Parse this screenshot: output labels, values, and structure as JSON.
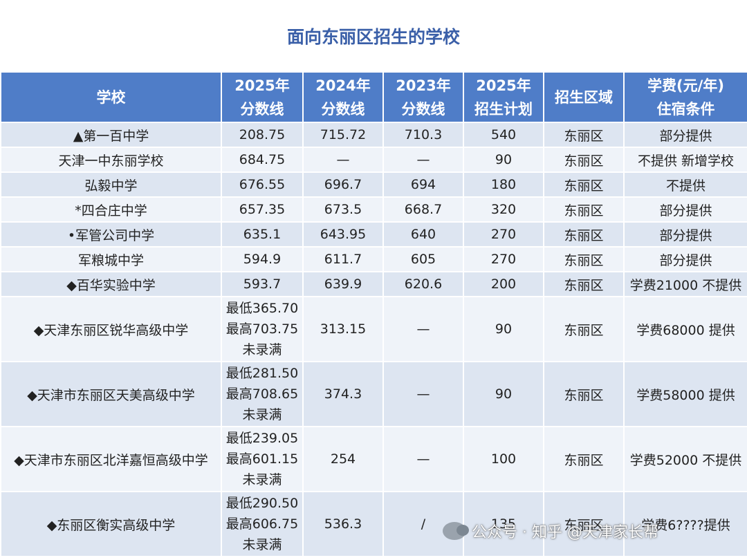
{
  "title": "面向东丽区招生的学校",
  "header": {
    "c0": [
      "学校"
    ],
    "c1": [
      "2025年",
      "分数线"
    ],
    "c2": [
      "2024年",
      "分数线"
    ],
    "c3": [
      "2023年",
      "分数线"
    ],
    "c4": [
      "2025年",
      "招生计划"
    ],
    "c5": [
      "招生区域"
    ],
    "c6": [
      "学费(元/年)",
      "住宿条件"
    ]
  },
  "rows": [
    {
      "school": "▲第一百中学",
      "s2025": [
        "208.75"
      ],
      "s2024": "715.72",
      "s2023": "710.3",
      "plan": "540",
      "area": "东丽区",
      "fee": "部分提供"
    },
    {
      "school": "天津一中东丽学校",
      "s2025": [
        "684.75"
      ],
      "s2024": "—",
      "s2023": "—",
      "plan": "90",
      "area": "东丽区",
      "fee": "不提供 新增学校"
    },
    {
      "school": "弘毅中学",
      "s2025": [
        "676.55"
      ],
      "s2024": "696.7",
      "s2023": "694",
      "plan": "180",
      "area": "东丽区",
      "fee": "不提供"
    },
    {
      "school": "*四合庄中学",
      "s2025": [
        "657.35"
      ],
      "s2024": "673.5",
      "s2023": "668.7",
      "plan": "320",
      "area": "东丽区",
      "fee": "部分提供"
    },
    {
      "school": "•军管公司中学",
      "s2025": [
        "635.1"
      ],
      "s2024": "643.95",
      "s2023": "640",
      "plan": "270",
      "area": "东丽区",
      "fee": "部分提供"
    },
    {
      "school": "军粮城中学",
      "s2025": [
        "594.9"
      ],
      "s2024": "611.7",
      "s2023": "605",
      "plan": "270",
      "area": "东丽区",
      "fee": "部分提供"
    },
    {
      "school": "◆百华实验中学",
      "s2025": [
        "593.7"
      ],
      "s2024": "639.9",
      "s2023": "620.6",
      "plan": "200",
      "area": "东丽区",
      "fee": "学费21000 不提供"
    },
    {
      "school": "◆天津东丽区锐华高级中学",
      "s2025": [
        "最低365.70",
        "最高703.75",
        "未录满"
      ],
      "s2024": "313.15",
      "s2023": "—",
      "plan": "90",
      "area": "东丽区",
      "fee": "学费68000 提供"
    },
    {
      "school": "◆天津市东丽区天美高级中学",
      "s2025": [
        "最低281.50",
        "最高708.65",
        "未录满"
      ],
      "s2024": "374.3",
      "s2023": "—",
      "plan": "90",
      "area": "东丽区",
      "fee": "学费58000 提供"
    },
    {
      "school": "◆天津市东丽区北洋嘉恒高级中学",
      "s2025": [
        "最低239.05",
        "最高601.15",
        "未录满"
      ],
      "s2024": "254",
      "s2023": "—",
      "plan": "100",
      "area": "东丽区",
      "fee": "学费52000 不提供"
    },
    {
      "school": "◆东丽区衡实高级中学",
      "s2025": [
        "最低290.50",
        "最高606.75",
        "未录满"
      ],
      "s2024": "536.3",
      "s2023": "/",
      "plan": "135",
      "area": "东丽区",
      "fee": "学费6????提供"
    }
  ],
  "watermark": "公众号 · 知乎 @天津家长帮"
}
